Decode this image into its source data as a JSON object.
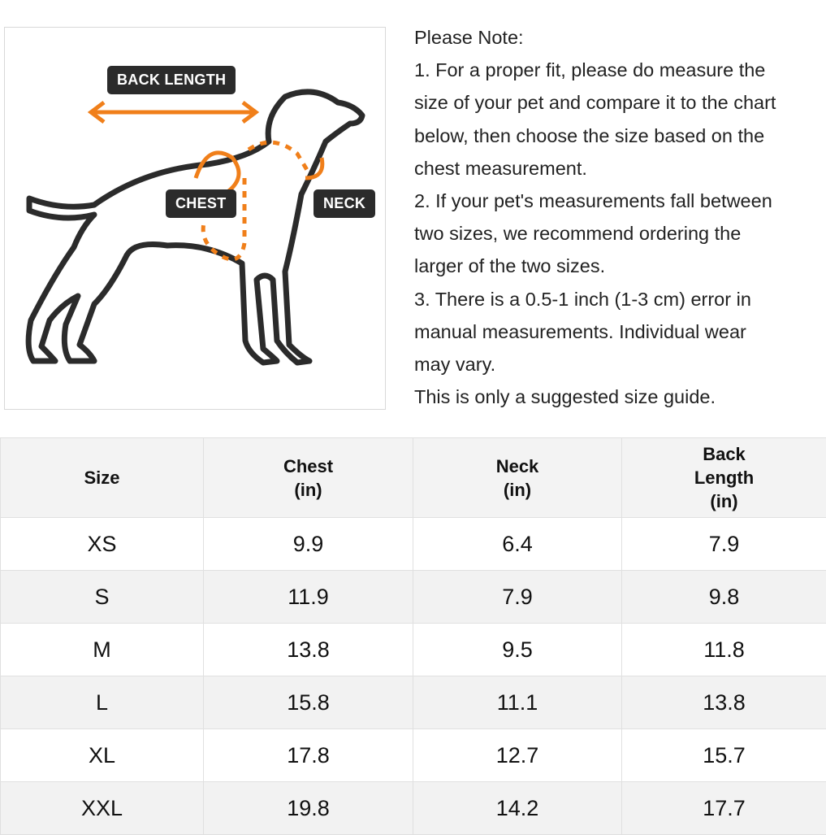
{
  "figure": {
    "labels": {
      "back_length": "BACK LENGTH",
      "chest": "CHEST",
      "neck": "NECK"
    },
    "accent_color": "#f07f1a"
  },
  "notes": {
    "heading": "Please Note:",
    "lines": [
      "1. For a proper fit, please do measure the",
      "size of your pet and compare it to the chart",
      "below, then choose the size based on the",
      "chest measurement.",
      "2. If your pet's measurements fall between",
      "two sizes, we recommend ordering the",
      "larger of the two sizes.",
      "3. There is a 0.5-1 inch (1-3 cm) error in",
      "manual measurements. Individual wear",
      "may vary.",
      "This is only a suggested size guide."
    ]
  },
  "table": {
    "headers": [
      "Size",
      "Chest\n(in)",
      "Neck\n(in)",
      "Back\nLength\n(in)"
    ],
    "rows": [
      [
        "XS",
        "9.9",
        "6.4",
        "7.9"
      ],
      [
        "S",
        "11.9",
        "7.9",
        "9.8"
      ],
      [
        "M",
        "13.8",
        "9.5",
        "11.8"
      ],
      [
        "L",
        "15.8",
        "11.1",
        "13.8"
      ],
      [
        "XL",
        "17.8",
        "12.7",
        "15.7"
      ],
      [
        "XXL",
        "19.8",
        "14.2",
        "17.7"
      ]
    ]
  }
}
